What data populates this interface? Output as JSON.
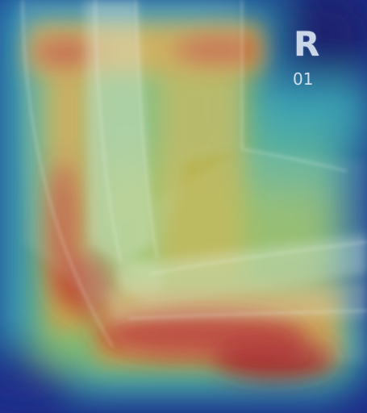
{
  "image": {
    "marker_letter": "R",
    "marker_number": "01"
  },
  "overlay": {
    "colormap": "jet",
    "colors": {
      "low": "#1b2a8c",
      "mid_low": "#2f9ec2",
      "mid": "#7fc47a",
      "mid_high": "#d8b84a",
      "high": "#b8282e"
    }
  }
}
